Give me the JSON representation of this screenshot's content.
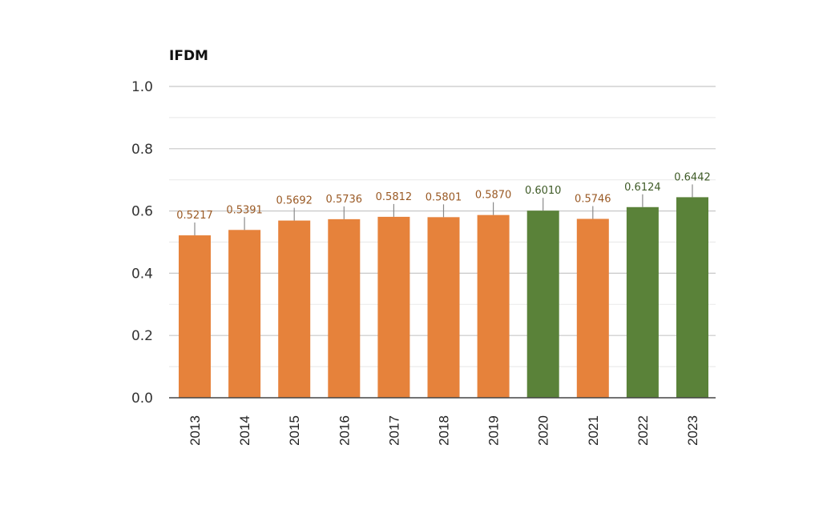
{
  "chart_data": {
    "type": "bar",
    "title": "IFDM",
    "xlabel": "",
    "ylabel": "IFDM",
    "ylim": [
      0,
      1.0
    ],
    "yticks": [
      "0.0",
      "0.2",
      "0.4",
      "0.6",
      "0.8",
      "1.0"
    ],
    "ytick_values": [
      0,
      0.2,
      0.4,
      0.6,
      0.8,
      1.0
    ],
    "minor_grid_values": [
      0.1,
      0.3,
      0.5,
      0.7,
      0.9
    ],
    "grid": true,
    "categories": [
      "2013",
      "2014",
      "2015",
      "2016",
      "2017",
      "2018",
      "2019",
      "2020",
      "2021",
      "2022",
      "2023"
    ],
    "values": [
      0.5217,
      0.5391,
      0.5692,
      0.5736,
      0.5812,
      0.5801,
      0.587,
      0.601,
      0.5746,
      0.6124,
      0.6442
    ],
    "labels": [
      "0.5217",
      "0.5391",
      "0.5692",
      "0.5736",
      "0.5812",
      "0.5801",
      "0.5870",
      "0.6010",
      "0.5746",
      "0.6124",
      "0.6442"
    ],
    "bar_groups": [
      "orange",
      "orange",
      "orange",
      "orange",
      "orange",
      "orange",
      "orange",
      "green",
      "orange",
      "green",
      "green"
    ],
    "colors": {
      "orange": "#E6823B",
      "green": "#5A8239",
      "orange_label": "#9A5A25",
      "green_label": "#3E5A26",
      "grid_major": "#C8C8C8",
      "grid_minor": "#EBEBEB",
      "axis": "#444444"
    }
  }
}
